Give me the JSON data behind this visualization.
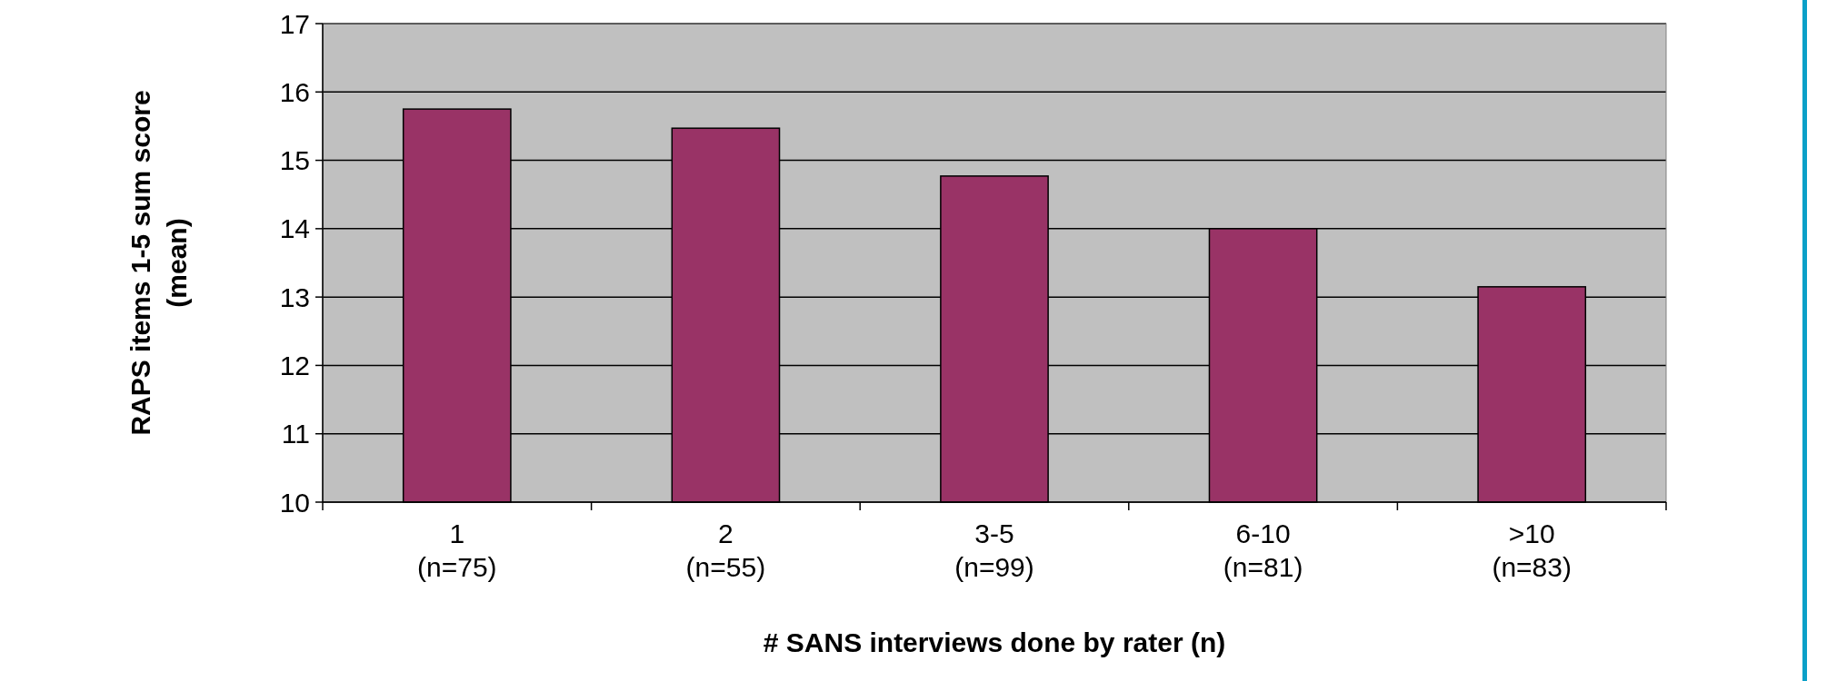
{
  "chart_data": {
    "type": "bar",
    "xlabel": "# SANS interviews done by rater (n)",
    "ylabel": "RAPS items 1-5 sum score\n(mean)",
    "categories": [
      "1\n(n=75)",
      "2\n(n=55)",
      "3-5\n(n=99)",
      "6-10\n(n=81)",
      ">10\n(n=83)"
    ],
    "values": [
      15.75,
      15.47,
      14.77,
      14.0,
      13.15
    ],
    "color": "#993366",
    "ylim": [
      10,
      17
    ],
    "yticks": [
      10,
      11,
      12,
      13,
      14,
      15,
      16,
      17
    ],
    "grid": "y"
  }
}
